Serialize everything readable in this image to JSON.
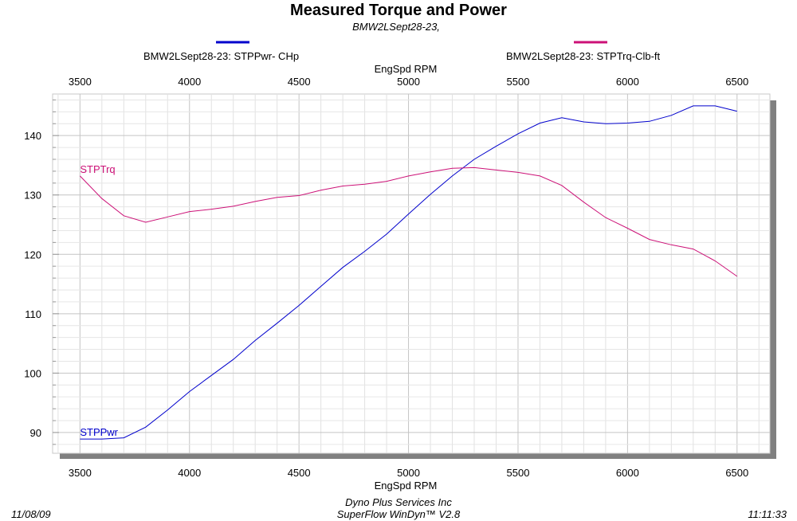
{
  "header": {
    "title": "Measured Torque and Power",
    "subtitle": "BMW2LSept28-23,"
  },
  "legend": {
    "items": [
      {
        "label": "BMW2LSept28-23: STPPwr- CHp",
        "color": "#0000cc"
      },
      {
        "label": "BMW2LSept28-23: STPTrq-Clb-ft",
        "color": "#cc1177"
      }
    ]
  },
  "footer": {
    "date": "11/08/09",
    "company": "Dyno Plus Services Inc",
    "software": "SuperFlow WinDyn™ V2.8",
    "time": "11:11:33"
  },
  "chart_data": {
    "type": "line",
    "title": "Measured Torque and Power",
    "subtitle": "BMW2LSept28-23,",
    "xlabel": "EngSpd  RPM",
    "ylabel": "",
    "xlim": [
      3375,
      6650
    ],
    "ylim": [
      86.5,
      147
    ],
    "x_ticks": [
      3500,
      4000,
      4500,
      5000,
      5500,
      6000,
      6500
    ],
    "y_ticks": [
      90,
      100,
      110,
      120,
      130,
      140
    ],
    "grid": true,
    "legend_position": "top",
    "x": [
      3500,
      3600,
      3700,
      3800,
      3900,
      4000,
      4100,
      4200,
      4300,
      4400,
      4500,
      4600,
      4700,
      4800,
      4900,
      5000,
      5100,
      5200,
      5300,
      5400,
      5500,
      5600,
      5700,
      5800,
      5900,
      6000,
      6100,
      6200,
      6300,
      6400,
      6500
    ],
    "series": [
      {
        "name": "BMW2LSept28-23: STPPwr- CHp",
        "label": "STPPwr",
        "color": "#0000cc",
        "values": [
          88.9,
          88.9,
          89.1,
          90.9,
          93.8,
          96.9,
          99.6,
          102.3,
          105.5,
          108.4,
          111.4,
          114.6,
          117.8,
          120.5,
          123.4,
          126.8,
          130.1,
          133.2,
          136.0,
          138.2,
          140.3,
          142.1,
          143.0,
          142.3,
          142.0,
          142.1,
          142.4,
          143.4,
          145.0,
          145.0,
          144.1
        ]
      },
      {
        "name": "BMW2LSept28-23: STPTrq-Clb-ft",
        "label": "STPTrq",
        "color": "#cc1177",
        "values": [
          133.2,
          129.4,
          126.5,
          125.4,
          126.3,
          127.2,
          127.6,
          128.1,
          128.9,
          129.6,
          129.9,
          130.8,
          131.5,
          131.8,
          132.3,
          133.2,
          133.9,
          134.5,
          134.6,
          134.2,
          133.8,
          133.2,
          131.6,
          128.8,
          126.2,
          124.4,
          122.5,
          121.6,
          120.9,
          118.9,
          116.3
        ]
      }
    ]
  }
}
